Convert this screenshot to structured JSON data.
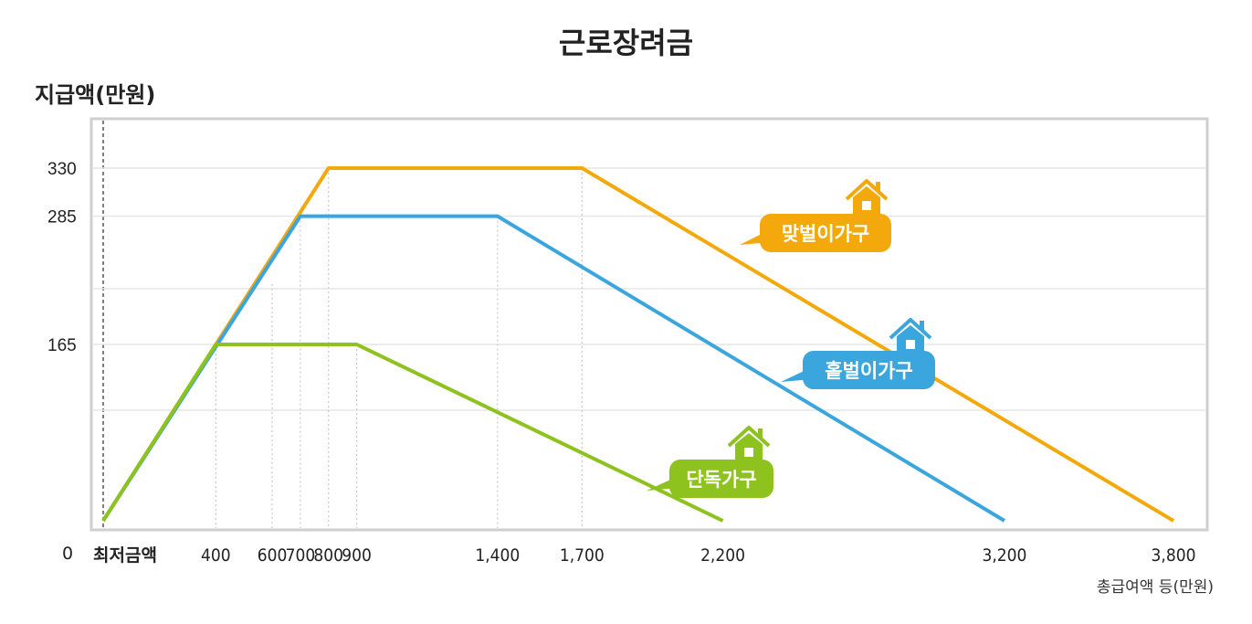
{
  "chart_data": {
    "type": "line",
    "title": "근로장려금",
    "ylabel": "지급액(만원)",
    "xlabel": "총급여액 등(만원)",
    "zero_label": "0",
    "min_label": "최저금액",
    "x_ticks": [
      {
        "value": 400,
        "label": "400"
      },
      {
        "value": 600,
        "label": "600"
      },
      {
        "value": 700,
        "label": "700"
      },
      {
        "value": 800,
        "label": "800"
      },
      {
        "value": 900,
        "label": "900"
      },
      {
        "value": 1400,
        "label": "1,400"
      },
      {
        "value": 1700,
        "label": "1,700"
      },
      {
        "value": 2200,
        "label": "2,200"
      },
      {
        "value": 3200,
        "label": "3,200"
      },
      {
        "value": 3800,
        "label": "3,800"
      }
    ],
    "y_ticks": [
      {
        "value": 330,
        "label": "330"
      },
      {
        "value": 285,
        "label": "285"
      },
      {
        "value": 165,
        "label": "165"
      }
    ],
    "series": [
      {
        "name": "맞벌이가구",
        "color": "#f3a90b",
        "points": [
          [
            0,
            0
          ],
          [
            800,
            330
          ],
          [
            1700,
            330
          ],
          [
            3800,
            0
          ]
        ]
      },
      {
        "name": "홑벌이가구",
        "color": "#3aa6dd",
        "points": [
          [
            0,
            0
          ],
          [
            700,
            285
          ],
          [
            1400,
            285
          ],
          [
            3200,
            0
          ]
        ]
      },
      {
        "name": "단독가구",
        "color": "#8dc21f",
        "points": [
          [
            0,
            0
          ],
          [
            400,
            165
          ],
          [
            900,
            165
          ],
          [
            2200,
            0
          ]
        ]
      }
    ],
    "grid": true
  }
}
